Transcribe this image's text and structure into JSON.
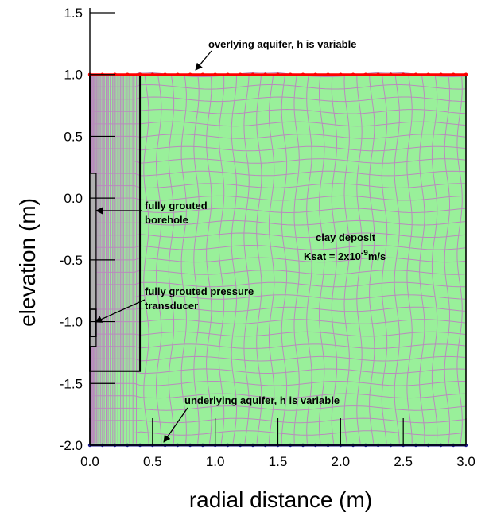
{
  "figure": {
    "xlabel": "radial distance (m)",
    "ylabel": "elevation (m)",
    "xlim": [
      0.0,
      3.0
    ],
    "ylim": [
      -2.0,
      1.5
    ],
    "x_ticks": [
      "0.0",
      "0.5",
      "1.0",
      "1.5",
      "2.0",
      "2.5",
      "3.0"
    ],
    "y_ticks": [
      "1.5",
      "1.0",
      "0.5",
      "0.0",
      "-0.5",
      "-1.0",
      "-1.5",
      "-2.0"
    ],
    "x_tick_values": [
      0.0,
      0.5,
      1.0,
      1.5,
      2.0,
      2.5,
      3.0
    ],
    "y_tick_values": [
      1.5,
      1.0,
      0.5,
      0.0,
      -0.5,
      -1.0,
      -1.5,
      -2.0
    ]
  },
  "domain": {
    "r_min": 0.0,
    "r_max": 3.0,
    "z_top": 1.0,
    "z_bottom": -2.0,
    "fill_color": "#99f09a",
    "mesh_color": "#b98bbd"
  },
  "borehole": {
    "r_max": 0.4,
    "z_top": 1.0,
    "z_bottom": -1.4,
    "fill_color": "#b0b0b0"
  },
  "grout_column": {
    "r_min": 0.0,
    "r_max": 0.05,
    "z_top": 0.2,
    "z_bottom": -1.2
  },
  "transducer": {
    "r_min": 0.0,
    "r_max": 0.05,
    "z_top": -0.9,
    "z_bottom": -1.12
  },
  "boundaries": {
    "top": {
      "z": 1.0,
      "color": "#ff0000"
    },
    "bottom": {
      "z": -2.0,
      "color": "#1a1a8c"
    }
  },
  "annotations": {
    "overlying": "overlying aquifer, h is variable",
    "borehole_1": "fully grouted",
    "borehole_2": "borehole",
    "clay_1": "clay deposit",
    "clay_2_a": "Ksat = 2x10",
    "clay_2_exp": "-9",
    "clay_2_b": "m/s",
    "transducer_1": "fully grouted pressure",
    "transducer_2": "transducer",
    "underlying": "underlying aquifer, h is variable"
  }
}
